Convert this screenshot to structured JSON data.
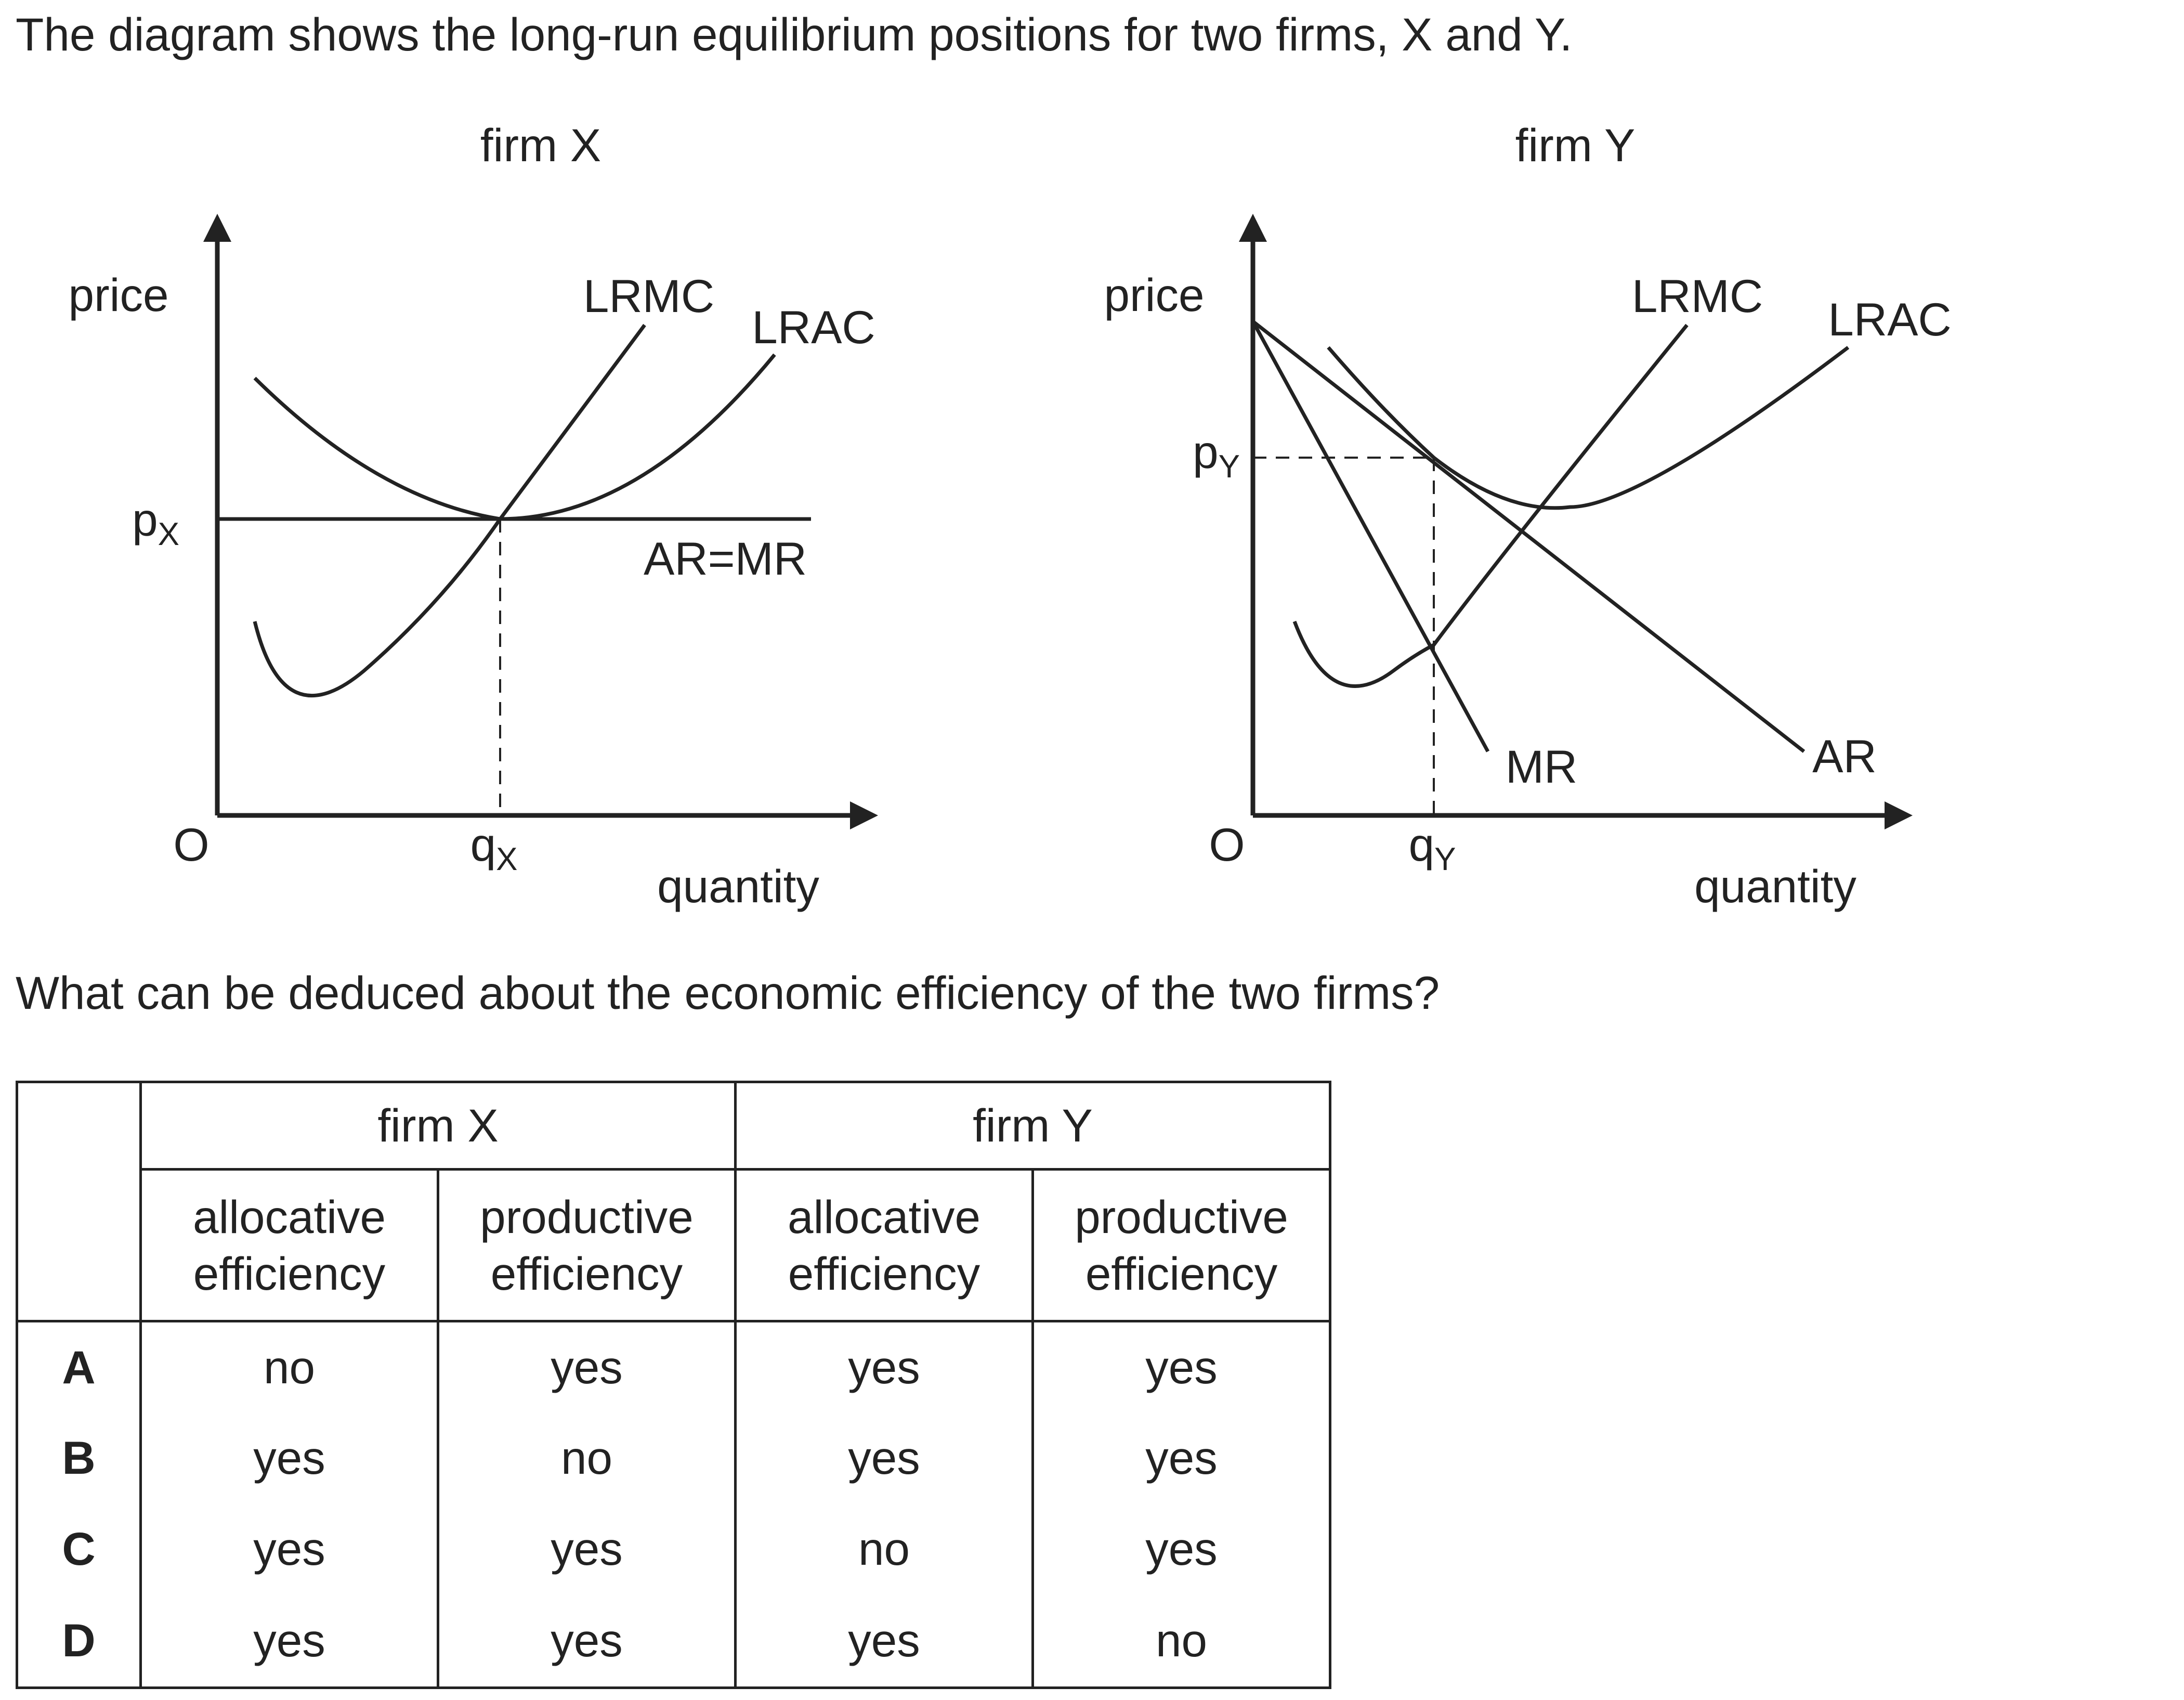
{
  "intro": "The diagram shows the long-run equilibrium positions for two firms, X and Y.",
  "question": "What can be deduced about the economic efficiency of the two firms?",
  "diagrams": [
    {
      "title": "firm X",
      "ylabel": "price",
      "xlabel": "quantity",
      "origin": "O",
      "price_mark": "p",
      "price_sub": "X",
      "qty_mark": "q",
      "qty_sub": "X",
      "labels": {
        "lrmc": "LRMC",
        "lrac": "LRAC",
        "ar_mr": "AR=MR"
      }
    },
    {
      "title": "firm Y",
      "ylabel": "price",
      "xlabel": "quantity",
      "origin": "O",
      "price_mark": "p",
      "price_sub": "Y",
      "qty_mark": "q",
      "qty_sub": "Y",
      "labels": {
        "lrmc": "LRMC",
        "lrac": "LRAC",
        "mr": "MR",
        "ar": "AR"
      }
    }
  ],
  "table": {
    "group_headers": [
      "firm X",
      "firm Y"
    ],
    "sub_headers": [
      [
        "allocative",
        "efficiency"
      ],
      [
        "productive",
        "efficiency"
      ],
      [
        "allocative",
        "efficiency"
      ],
      [
        "productive",
        "efficiency"
      ]
    ],
    "rows": [
      {
        "letter": "A",
        "values": [
          "no",
          "yes",
          "yes",
          "yes"
        ]
      },
      {
        "letter": "B",
        "values": [
          "yes",
          "no",
          "yes",
          "yes"
        ]
      },
      {
        "letter": "C",
        "values": [
          "yes",
          "yes",
          "no",
          "yes"
        ]
      },
      {
        "letter": "D",
        "values": [
          "yes",
          "yes",
          "yes",
          "no"
        ]
      }
    ]
  }
}
